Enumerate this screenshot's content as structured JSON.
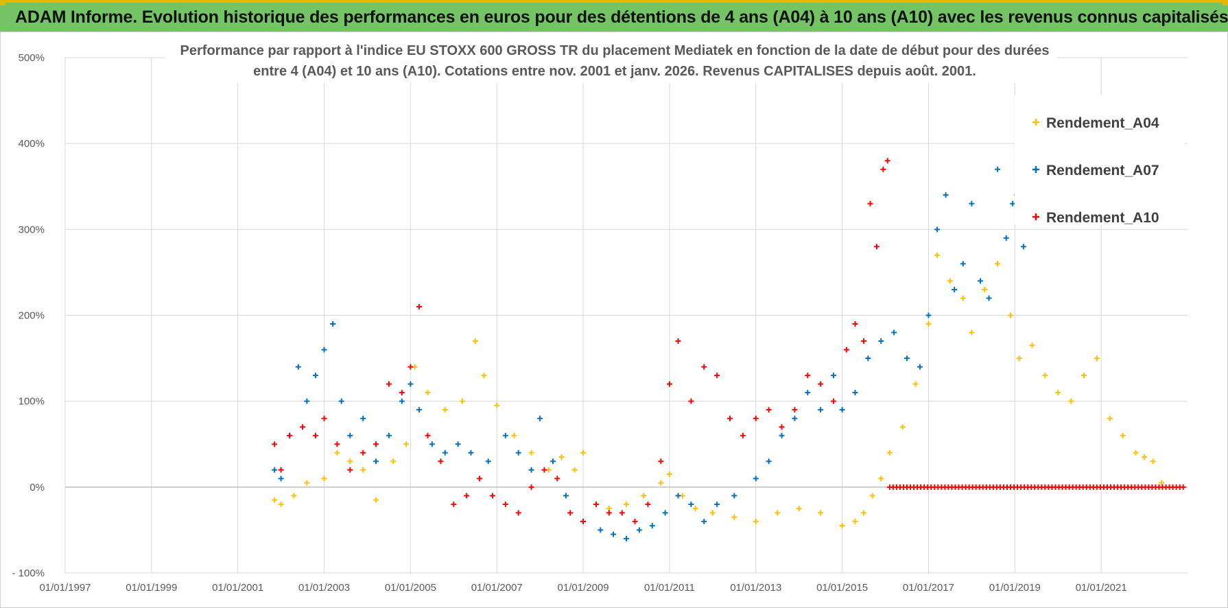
{
  "header": {
    "title": "ADAM Informe. Evolution historique des performances en euros pour des détentions de 4 ans (A04) à 10 ans (A10) avec les revenus connus capitalisés"
  },
  "colors": {
    "banner": "#74c365",
    "banner_border": "#e8b800",
    "grid": "#d9d9d9"
  },
  "chart_data": {
    "type": "scatter",
    "title_line1": "Performance par rapport à l'indice EU STOXX 600 GROSS TR  du placement Mediatek  en fonction de la date de début pour des durées",
    "title_line2": "entre 4 (A04) et 10 ans (A10).  Cotations entre nov. 2001 et janv. 2026. Revenus CAPITALISES depuis août. 2001.",
    "xlabel": "",
    "ylabel": "",
    "x_range": [
      1997.0,
      2023.0
    ],
    "ylim": [
      -100,
      500
    ],
    "y_ticks": [
      -100,
      0,
      100,
      200,
      300,
      400,
      500
    ],
    "y_tick_labels": [
      "- 100%",
      "0%",
      "100%",
      "200%",
      "300%",
      "400%",
      "500%"
    ],
    "x_ticks": [
      1997,
      1999,
      2001,
      2003,
      2005,
      2007,
      2009,
      2011,
      2013,
      2015,
      2017,
      2019,
      2021
    ],
    "x_tick_labels": [
      "01/01/1997",
      "01/01/1999",
      "01/01/2001",
      "01/01/2003",
      "01/01/2005",
      "01/01/2007",
      "01/01/2009",
      "01/01/2011",
      "01/01/2013",
      "01/01/2015",
      "01/01/2017",
      "01/01/2019",
      "01/01/2021"
    ],
    "legend_position": "top-right",
    "series": [
      {
        "name": "Rendement_A04",
        "color": "#ffc000",
        "marker": "+",
        "x": [
          2001.85,
          2002.0,
          2002.3,
          2002.6,
          2003.0,
          2003.3,
          2003.6,
          2003.9,
          2004.2,
          2004.6,
          2004.9,
          2005.1,
          2005.4,
          2005.8,
          2006.2,
          2006.5,
          2006.7,
          2007.0,
          2007.4,
          2007.8,
          2008.2,
          2008.5,
          2008.8,
          2009.0,
          2009.3,
          2009.6,
          2010.0,
          2010.4,
          2010.8,
          2011.0,
          2011.3,
          2011.6,
          2012.0,
          2012.5,
          2013.0,
          2013.5,
          2014.0,
          2014.5,
          2015.0,
          2015.3,
          2015.5,
          2015.7,
          2015.9,
          2016.1,
          2016.4,
          2016.7,
          2017.0,
          2017.2,
          2017.5,
          2017.8,
          2018.0,
          2018.3,
          2018.6,
          2018.9,
          2019.1,
          2019.4,
          2019.7,
          2020.0,
          2020.3,
          2020.6,
          2020.9,
          2021.2,
          2021.5,
          2021.8,
          2022.0,
          2022.2,
          2022.4
        ],
        "y": [
          -15,
          -20,
          -10,
          5,
          10,
          40,
          30,
          20,
          -15,
          30,
          50,
          140,
          110,
          90,
          100,
          170,
          130,
          95,
          60,
          40,
          20,
          35,
          20,
          40,
          -20,
          -25,
          -20,
          -10,
          5,
          15,
          -10,
          -25,
          -30,
          -35,
          -40,
          -30,
          -25,
          -30,
          -45,
          -40,
          -30,
          -10,
          10,
          40,
          70,
          120,
          190,
          270,
          240,
          220,
          180,
          230,
          260,
          200,
          150,
          165,
          130,
          110,
          100,
          130,
          150,
          80,
          60,
          40,
          35,
          30,
          5
        ]
      },
      {
        "name": "Rendement_A07",
        "color": "#0070c0",
        "marker": "+",
        "x": [
          2001.85,
          2002.0,
          2002.2,
          2002.4,
          2002.6,
          2002.8,
          2003.0,
          2003.2,
          2003.4,
          2003.6,
          2003.9,
          2004.2,
          2004.5,
          2004.8,
          2005.0,
          2005.2,
          2005.5,
          2005.8,
          2006.1,
          2006.4,
          2006.8,
          2007.2,
          2007.5,
          2007.8,
          2008.0,
          2008.3,
          2008.6,
          2009.0,
          2009.4,
          2009.7,
          2010.0,
          2010.3,
          2010.6,
          2010.9,
          2011.2,
          2011.5,
          2011.8,
          2012.1,
          2012.5,
          2013.0,
          2013.3,
          2013.6,
          2013.9,
          2014.2,
          2014.5,
          2014.8,
          2015.0,
          2015.3,
          2015.6,
          2015.9,
          2016.2,
          2016.5,
          2016.8,
          2017.0,
          2017.2,
          2017.4,
          2017.6,
          2017.8,
          2018.0,
          2018.2,
          2018.4,
          2018.6,
          2018.8,
          2018.95,
          2019.05,
          2019.2
        ],
        "y": [
          20,
          10,
          60,
          140,
          100,
          130,
          160,
          190,
          100,
          60,
          80,
          30,
          60,
          100,
          120,
          90,
          50,
          40,
          50,
          40,
          30,
          60,
          40,
          20,
          80,
          30,
          -10,
          -40,
          -50,
          -55,
          -60,
          -50,
          -45,
          -30,
          -10,
          -20,
          -40,
          -20,
          -10,
          10,
          30,
          60,
          80,
          110,
          90,
          130,
          90,
          110,
          150,
          170,
          180,
          150,
          140,
          200,
          300,
          340,
          230,
          260,
          330,
          240,
          220,
          370,
          290,
          330,
          340,
          280
        ]
      },
      {
        "name": "Rendement_A10",
        "color": "#ff0000",
        "marker": "+",
        "x": [
          2001.85,
          2002.0,
          2002.2,
          2002.5,
          2002.8,
          2003.0,
          2003.3,
          2003.6,
          2003.9,
          2004.2,
          2004.5,
          2004.8,
          2005.0,
          2005.2,
          2005.4,
          2005.7,
          2006.0,
          2006.3,
          2006.6,
          2006.9,
          2007.2,
          2007.5,
          2007.8,
          2008.1,
          2008.4,
          2008.7,
          2009.0,
          2009.3,
          2009.6,
          2009.9,
          2010.2,
          2010.5,
          2010.8,
          2011.0,
          2011.2,
          2011.5,
          2011.8,
          2012.1,
          2012.4,
          2012.7,
          2013.0,
          2013.3,
          2013.6,
          2013.9,
          2014.2,
          2014.5,
          2014.8,
          2015.1,
          2015.3,
          2015.5,
          2015.65,
          2015.8,
          2015.95,
          2016.05
        ],
        "y": [
          50,
          20,
          60,
          70,
          60,
          80,
          50,
          20,
          40,
          50,
          120,
          110,
          140,
          210,
          60,
          30,
          -20,
          -10,
          10,
          -10,
          -20,
          -30,
          0,
          20,
          10,
          -30,
          -40,
          -20,
          -30,
          -30,
          -40,
          -20,
          30,
          120,
          170,
          100,
          140,
          130,
          80,
          60,
          80,
          90,
          70,
          90,
          130,
          120,
          100,
          160,
          190,
          170,
          330,
          280,
          370,
          380
        ]
      }
    ],
    "zero_band": {
      "series": "Rendement_A10",
      "from_x": 2016.1,
      "to_x": 2022.9,
      "value": 0
    }
  }
}
